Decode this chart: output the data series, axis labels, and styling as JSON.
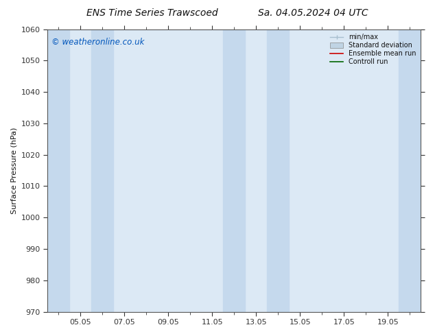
{
  "title_left": "ENS Time Series Trawscoed",
  "title_right": "Sa. 04.05.2024 04 UTC",
  "ylabel": "Surface Pressure (hPa)",
  "ylim": [
    970,
    1060
  ],
  "yticks": [
    970,
    980,
    990,
    1000,
    1010,
    1020,
    1030,
    1040,
    1050,
    1060
  ],
  "x_tick_labels": [
    "05.05",
    "07.05",
    "09.05",
    "11.05",
    "13.05",
    "15.05",
    "17.05",
    "19.05"
  ],
  "x_tick_positions": [
    1,
    3,
    5,
    7,
    9,
    11,
    13,
    15
  ],
  "x_minor_tick_positions": [
    0,
    2,
    4,
    6,
    8,
    10,
    12,
    14,
    16
  ],
  "x_lim": [
    -0.5,
    16.5
  ],
  "shaded_bands": [
    {
      "x_start": -0.5,
      "x_end": 0.5
    },
    {
      "x_start": 1.5,
      "x_end": 2.5
    },
    {
      "x_start": 7.5,
      "x_end": 8.5
    },
    {
      "x_start": 9.5,
      "x_end": 10.5
    },
    {
      "x_start": 15.5,
      "x_end": 16.5
    }
  ],
  "plot_bg_color": "#dce9f5",
  "band_color": "#c5d9ed",
  "watermark": "© weatheronline.co.uk",
  "watermark_color": "#0055bb",
  "legend_entries": [
    {
      "label": "min/max",
      "color": "#a8bfcf",
      "type": "errorbar"
    },
    {
      "label": "Standard deviation",
      "color": "#c0d4e4",
      "type": "box"
    },
    {
      "label": "Ensemble mean run",
      "color": "#cc0000",
      "type": "line"
    },
    {
      "label": "Controll run",
      "color": "#006600",
      "type": "line"
    }
  ],
  "background_color": "#ffffff",
  "spine_color": "#555555",
  "tick_color": "#333333",
  "font_color": "#111111",
  "title_fontsize": 10,
  "label_fontsize": 8,
  "tick_fontsize": 8,
  "watermark_fontsize": 8.5,
  "legend_fontsize": 7
}
